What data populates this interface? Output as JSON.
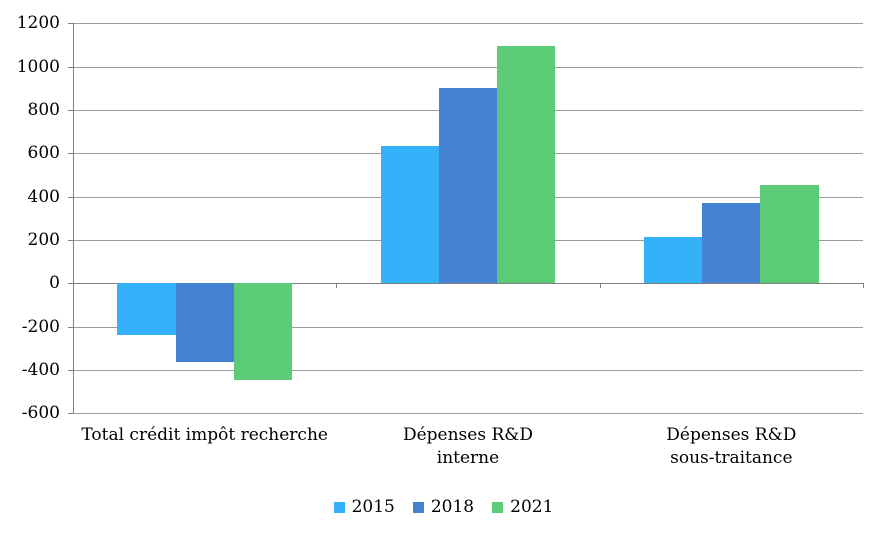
{
  "chart_data": {
    "type": "bar",
    "categories": [
      "Total crédit impôt recherche",
      "Dépenses R&D interne",
      "Dépenses R&D sous-traitance"
    ],
    "category_label_lines": [
      [
        "Total crédit impôt recherche"
      ],
      [
        "Dépenses R&D",
        "interne"
      ],
      [
        "Dépenses R&D",
        "sous-traitance"
      ]
    ],
    "series": [
      {
        "name": "2015",
        "color": "#33B2FA",
        "values": [
          -240,
          635,
          215
        ]
      },
      {
        "name": "2018",
        "color": "#4583D2",
        "values": [
          -365,
          900,
          370
        ]
      },
      {
        "name": "2021",
        "color": "#5CCB77",
        "values": [
          -445,
          1095,
          455
        ]
      }
    ],
    "ylim": [
      -600,
      1200
    ],
    "yticks": [
      1200,
      1000,
      800,
      600,
      400,
      200,
      0,
      -200,
      -400,
      -600
    ],
    "grid": true,
    "legend_position": "bottom",
    "legend_entries": [
      "2015",
      "2018",
      "2021"
    ]
  },
  "colors": {
    "background": "#FFFFFF",
    "gridline": "#9D9D9D",
    "axis": "#808080",
    "text": "#000000"
  }
}
